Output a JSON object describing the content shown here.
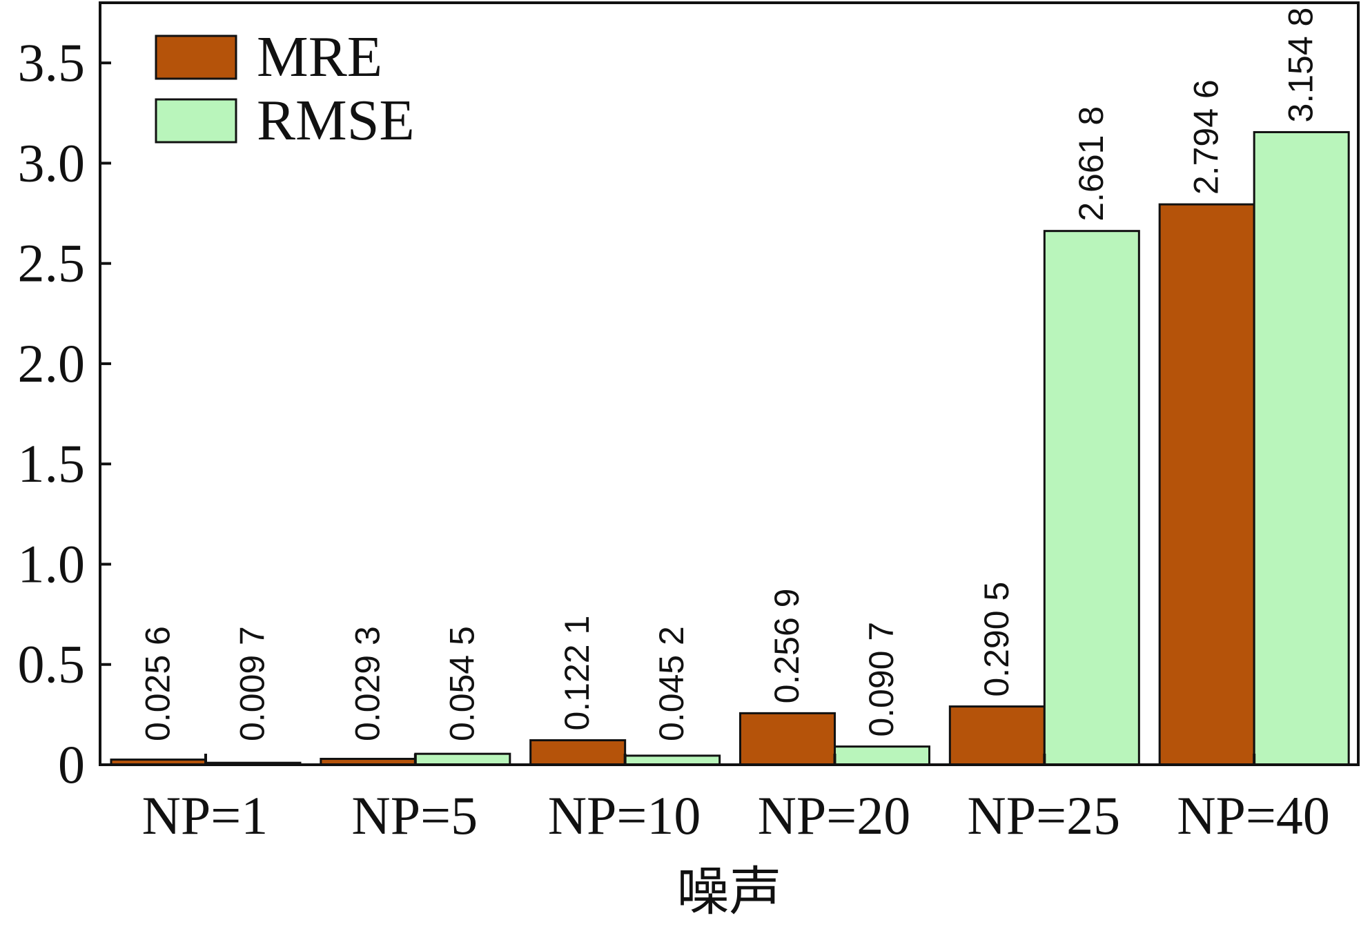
{
  "chart_data": {
    "type": "bar",
    "title": "",
    "xlabel": "噪声",
    "ylabel": "",
    "ylim": [
      0,
      3.8
    ],
    "yticks": [
      0,
      0.5,
      1.0,
      1.5,
      2.0,
      2.5,
      3.0,
      3.5
    ],
    "ytick_labels": [
      "0",
      "0.5",
      "1.0",
      "1.5",
      "2.0",
      "2.5",
      "3.0",
      "3.5"
    ],
    "categories": [
      "NP=1",
      "NP=5",
      "NP=10",
      "NP=20",
      "NP=25",
      "NP=40"
    ],
    "series": [
      {
        "name": "MRE",
        "color": "#b5530a",
        "values": [
          0.0256,
          0.0293,
          0.1221,
          0.2569,
          0.2905,
          2.7946
        ],
        "labels": [
          "0.025 6",
          "0.029 3",
          "0.122 1",
          "0.256 9",
          "0.290 5",
          "2.794 6"
        ]
      },
      {
        "name": "RMSE",
        "color": "#b9f5bb",
        "values": [
          0.0097,
          0.0545,
          0.0452,
          0.0907,
          2.6618,
          3.1548
        ],
        "labels": [
          "0.009 7",
          "0.054 5",
          "0.045 2",
          "0.090 7",
          "2.661 8",
          "3.154 8"
        ]
      }
    ],
    "legend_position": "top-left",
    "grid": false
  }
}
